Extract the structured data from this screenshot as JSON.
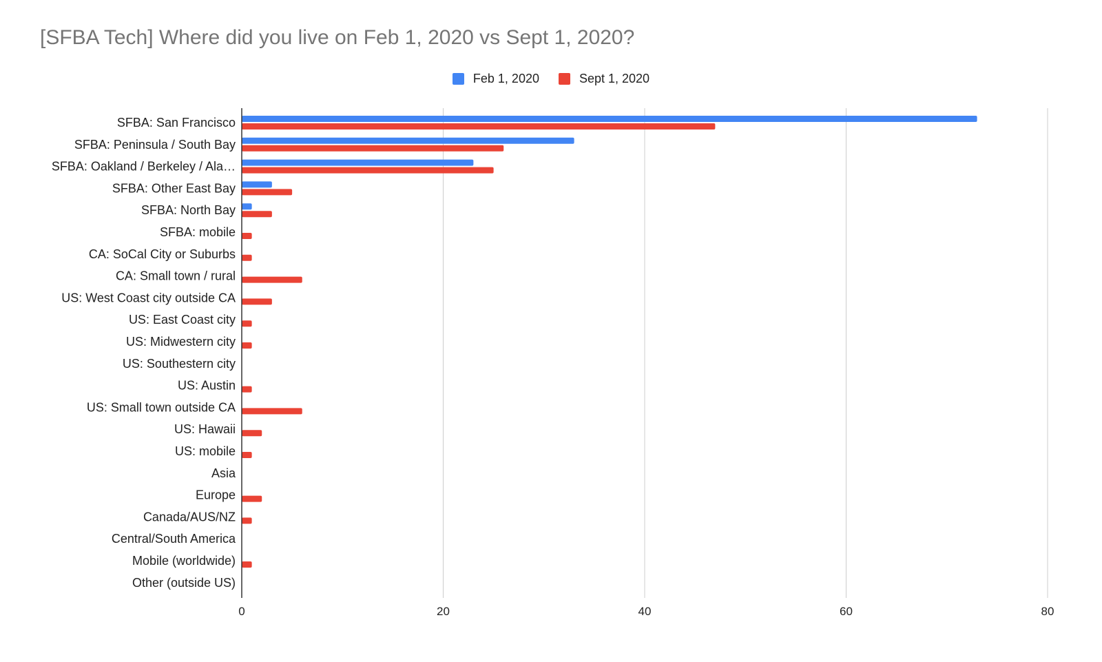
{
  "chart_data": {
    "type": "bar",
    "orientation": "horizontal",
    "title": "[SFBA Tech] Where did you live on Feb 1, 2020 vs Sept 1, 2020?",
    "categories": [
      "SFBA: San Francisco",
      "SFBA: Peninsula / South Bay",
      "SFBA: Oakland / Berkeley / Ala…",
      "SFBA: Other East Bay",
      "SFBA: North Bay",
      "SFBA: mobile",
      "CA: SoCal City or Suburbs",
      "CA: Small town / rural",
      "US: West Coast city outside CA",
      "US: East Coast city",
      "US: Midwestern city",
      "US: Southestern city",
      "US: Austin",
      "US: Small town outside CA",
      "US: Hawaii",
      "US: mobile",
      "Asia",
      "Europe",
      "Canada/AUS/NZ",
      "Central/South America",
      "Mobile (worldwide)",
      "Other (outside US)"
    ],
    "series": [
      {
        "name": "Feb 1, 2020",
        "color": "#4285f4",
        "values": [
          73,
          33,
          23,
          3,
          1,
          0,
          0,
          0,
          0,
          0,
          0,
          0,
          0,
          0,
          0,
          0,
          0,
          0,
          0,
          0,
          0,
          0
        ]
      },
      {
        "name": "Sept 1, 2020",
        "color": "#ea4335",
        "values": [
          47,
          26,
          25,
          5,
          3,
          1,
          1,
          6,
          3,
          1,
          1,
          0,
          1,
          6,
          2,
          1,
          0,
          2,
          1,
          0,
          1,
          0
        ]
      }
    ],
    "xlim": [
      0,
      80
    ],
    "xticks": [
      "0",
      "20",
      "40",
      "60",
      "80"
    ],
    "xlabel": "",
    "ylabel": "",
    "grid": true,
    "legend_position": "top-center"
  }
}
